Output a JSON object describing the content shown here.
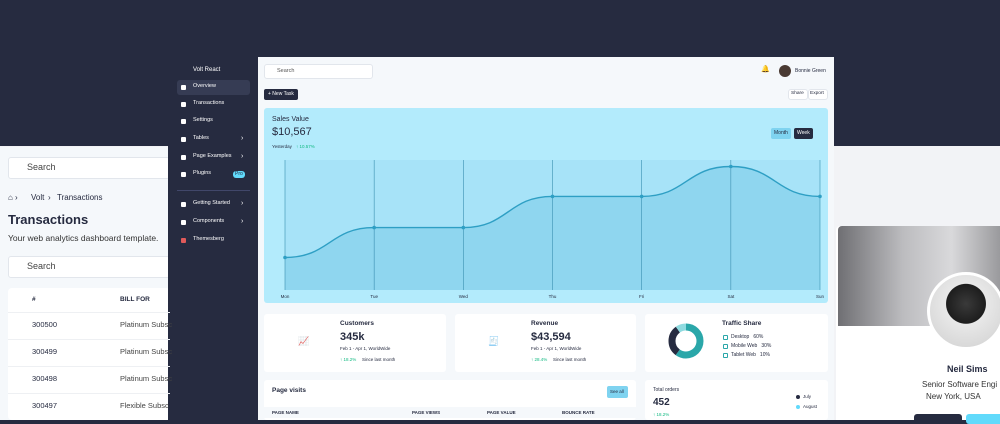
{
  "left_panel": {
    "search": "Search",
    "breadcrumb": [
      "Volt",
      "Transactions"
    ],
    "title": "Transactions",
    "subtitle": "Your web analytics dashboard template.",
    "search_table": "Search",
    "table": {
      "headers": [
        "#",
        "BILL FOR"
      ],
      "rows": [
        [
          "300500",
          "Platinum Subsc"
        ],
        [
          "300499",
          "Platinum Subsc"
        ],
        [
          "300498",
          "Platinum Subsc"
        ],
        [
          "300497",
          "Flexible Subsc"
        ]
      ]
    }
  },
  "sidebar": {
    "brand": "Volt React",
    "items": [
      "Overview",
      "Transactions",
      "Settings",
      "Tables",
      "Page Examples",
      "Plugins",
      "Getting Started",
      "Components",
      "Themesberg"
    ],
    "badge": "Pro"
  },
  "topbar": {
    "search": "Search",
    "user": "Bonnie Green",
    "new_task": "+ New Task",
    "buttons": [
      "Share",
      "Export"
    ]
  },
  "chart_data": {
    "type": "line",
    "title": "Sales Value",
    "value": "$10,567",
    "period": "Yesterday",
    "change": "↑ 10.57%",
    "toggles": [
      "Month",
      "Week"
    ],
    "categories": [
      "Mon",
      "Tue",
      "Wed",
      "Thu",
      "Fri",
      "Sat",
      "Sun"
    ],
    "values": [
      25,
      48,
      48,
      72,
      72,
      95,
      72
    ],
    "ylim": [
      0,
      100
    ],
    "color": "#2e9fc4",
    "grid": true
  },
  "cards": [
    {
      "title": "Customers",
      "value": "345k",
      "period": "Feb 1 - Apr 1, WorldWide",
      "change": "↑ 18.2%",
      "note": "Since last month"
    },
    {
      "title": "Revenue",
      "value": "$43,594",
      "period": "Feb 1 - Apr 1, WorldWide",
      "change": "↑ 28.4%",
      "note": "Since last month"
    }
  ],
  "traffic_share": {
    "type": "donut",
    "title": "Traffic Share",
    "categories": [
      "Desktop",
      "Mobile Web",
      "Tablet Web"
    ],
    "values": [
      60,
      30,
      10
    ],
    "value_labels": [
      "60%",
      "30%",
      "10%"
    ],
    "colors": [
      "#2aa7a9",
      "#262b40",
      "#8fdbe0"
    ]
  },
  "page_visits": {
    "title": "Page visits",
    "button": "See all",
    "headers": [
      "PAGE NAME",
      "PAGE VIEWS",
      "PAGE VALUE",
      "BOUNCE RATE"
    ]
  },
  "orders": {
    "title": "Total orders",
    "value": "452",
    "change": "↑ 18.2%",
    "legend": [
      "July",
      "August"
    ]
  },
  "profile": {
    "name": "Neil Sims",
    "role": "Senior Software Engi",
    "location": "New York, USA"
  }
}
